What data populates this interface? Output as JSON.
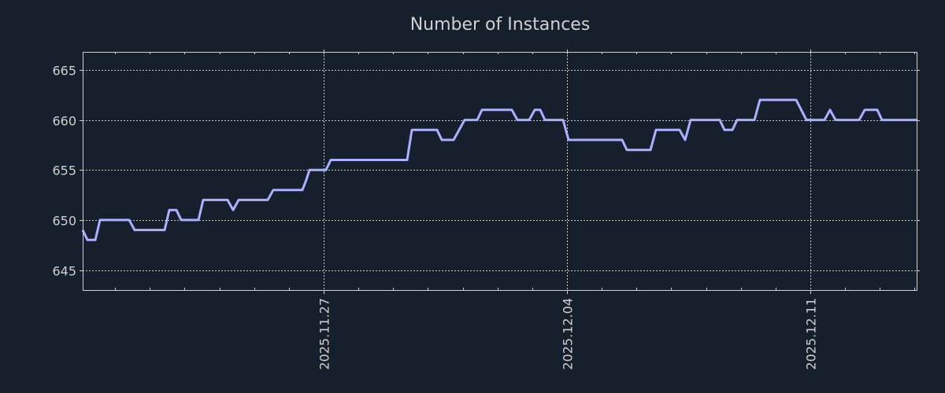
{
  "chart_data": {
    "type": "line",
    "title": "Number of Instances",
    "xlabel": "",
    "ylabel": "",
    "x_unit": "days since 2025-11-20",
    "xlim": [
      0.068,
      24.059
    ],
    "ylim": [
      643,
      666.8
    ],
    "grid": true,
    "legend": "none",
    "x_ticks": [
      {
        "value": 7,
        "label": "2025.11.27"
      },
      {
        "value": 14,
        "label": "2025.12.04"
      },
      {
        "value": 21,
        "label": "2025.12.11"
      }
    ],
    "x_minor_ticks": [
      1,
      2,
      3,
      4,
      5,
      6,
      8,
      9,
      10,
      11,
      12,
      13,
      15,
      16,
      17,
      18,
      19,
      20,
      22,
      23,
      24
    ],
    "y_ticks": [
      645,
      650,
      655,
      660,
      665
    ],
    "line_color": "#aab0ff",
    "series": [
      {
        "name": "Number of Instances",
        "x": [
          0.068,
          0.204,
          0.43,
          0.566,
          1.404,
          1.563,
          2.424,
          2.56,
          2.764,
          2.899,
          3.398,
          3.534,
          4.236,
          4.395,
          4.553,
          5.391,
          5.55,
          6.388,
          6.5,
          6.592,
          6.728,
          7.068,
          7.204,
          9.401,
          9.537,
          10.262,
          10.398,
          10.738,
          11.055,
          11.418,
          11.554,
          12.415,
          12.573,
          12.913,
          13.072,
          13.23,
          13.366,
          13.887,
          14.046,
          15.586,
          15.722,
          16.402,
          16.56,
          17.24,
          17.398,
          17.557,
          18.395,
          18.531,
          18.758,
          18.894,
          19.392,
          19.551,
          20.593,
          20.888,
          21.409,
          21.568,
          21.726,
          22.406,
          22.565,
          22.927,
          23.063,
          24.059
        ],
        "y": [
          649,
          648,
          648,
          650,
          650,
          649,
          649,
          651,
          651,
          650,
          650,
          652,
          652,
          651,
          652,
          652,
          653,
          653,
          654,
          655,
          655,
          655,
          656,
          656,
          659,
          659,
          658,
          658,
          660,
          660,
          661,
          661,
          660,
          660,
          661,
          661,
          660,
          660,
          658,
          658,
          657,
          657,
          659,
          659,
          658,
          660,
          660,
          659,
          659,
          660,
          660,
          662,
          662,
          660,
          660,
          661,
          660,
          660,
          661,
          661,
          660,
          660
        ]
      }
    ]
  }
}
